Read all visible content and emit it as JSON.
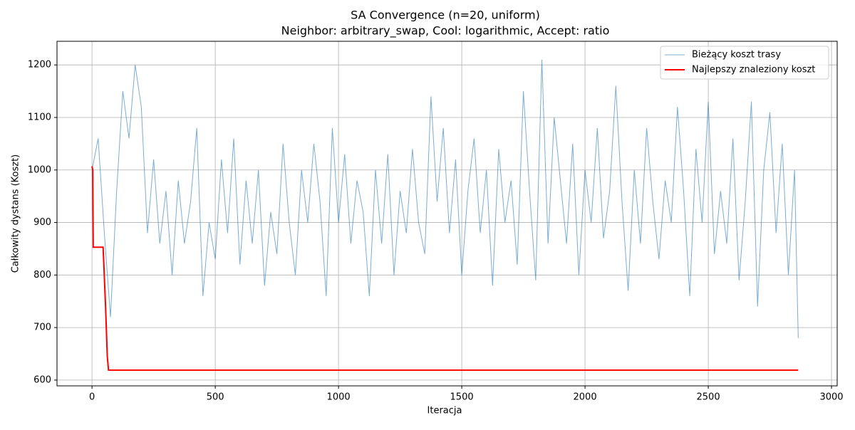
{
  "chart_data": {
    "type": "line",
    "title": "SA Convergence (n=20, uniform)",
    "subtitle": "Neighbor: arbitrary_swap, Cool: logarithmic, Accept: ratio",
    "x_label": "Iteracja",
    "y_label": "Całkowity dystans (Koszt)",
    "xlim": [
      -142,
      3023
    ],
    "ylim": [
      589,
      1245
    ],
    "xticks": [
      0,
      500,
      1000,
      1500,
      2000,
      2500,
      3000
    ],
    "yticks": [
      600,
      700,
      800,
      900,
      1000,
      1100,
      1200
    ],
    "grid": true,
    "legend": "upper right",
    "series": [
      {
        "name": "Bieżący koszt trasy",
        "color": "#1f77b4",
        "x": [
          0,
          25,
          50,
          75,
          100,
          125,
          150,
          175,
          200,
          225,
          250,
          275,
          300,
          325,
          350,
          375,
          400,
          425,
          450,
          475,
          500,
          525,
          550,
          575,
          600,
          625,
          650,
          675,
          700,
          725,
          750,
          775,
          800,
          825,
          850,
          875,
          900,
          925,
          950,
          975,
          1000,
          1025,
          1050,
          1075,
          1100,
          1125,
          1150,
          1175,
          1200,
          1225,
          1250,
          1275,
          1300,
          1325,
          1350,
          1375,
          1400,
          1425,
          1450,
          1475,
          1500,
          1525,
          1550,
          1575,
          1600,
          1625,
          1650,
          1675,
          1700,
          1725,
          1750,
          1775,
          1800,
          1825,
          1850,
          1875,
          1900,
          1925,
          1950,
          1975,
          2000,
          2025,
          2050,
          2075,
          2100,
          2125,
          2150,
          2175,
          2200,
          2225,
          2250,
          2275,
          2300,
          2325,
          2350,
          2375,
          2400,
          2425,
          2450,
          2475,
          2500,
          2525,
          2550,
          2575,
          2600,
          2625,
          2650,
          2675,
          2700,
          2725,
          2750,
          2775,
          2800,
          2825,
          2850,
          2865
        ],
        "values": [
          1000,
          1060,
          880,
          720,
          960,
          1150,
          1060,
          1200,
          1120,
          880,
          1020,
          860,
          960,
          800,
          980,
          860,
          940,
          1080,
          760,
          900,
          830,
          1020,
          880,
          1060,
          820,
          980,
          860,
          1000,
          780,
          920,
          840,
          1050,
          900,
          800,
          1000,
          900,
          1050,
          940,
          760,
          1080,
          900,
          1030,
          860,
          980,
          920,
          760,
          1000,
          860,
          1030,
          800,
          960,
          880,
          1040,
          900,
          840,
          1140,
          940,
          1080,
          880,
          1020,
          800,
          960,
          1060,
          880,
          1000,
          780,
          1040,
          900,
          980,
          820,
          1150,
          960,
          790,
          1210,
          860,
          1100,
          980,
          860,
          1050,
          800,
          1000,
          900,
          1080,
          870,
          960,
          1160,
          940,
          770,
          1000,
          860,
          1080,
          940,
          830,
          980,
          900,
          1120,
          960,
          760,
          1040,
          900,
          1130,
          840,
          960,
          860,
          1060,
          790,
          940,
          1130,
          740,
          1000,
          1110,
          880,
          1050,
          800,
          1000,
          680
        ]
      },
      {
        "name": "Najlepszy znaleziony koszt",
        "color": "#ff0000",
        "x": [
          0,
          3,
          5,
          45,
          48,
          55,
          58,
          62,
          67,
          2865
        ],
        "values": [
          1007,
          1000,
          853,
          853,
          820,
          740,
          700,
          645,
          619,
          619
        ]
      }
    ]
  }
}
